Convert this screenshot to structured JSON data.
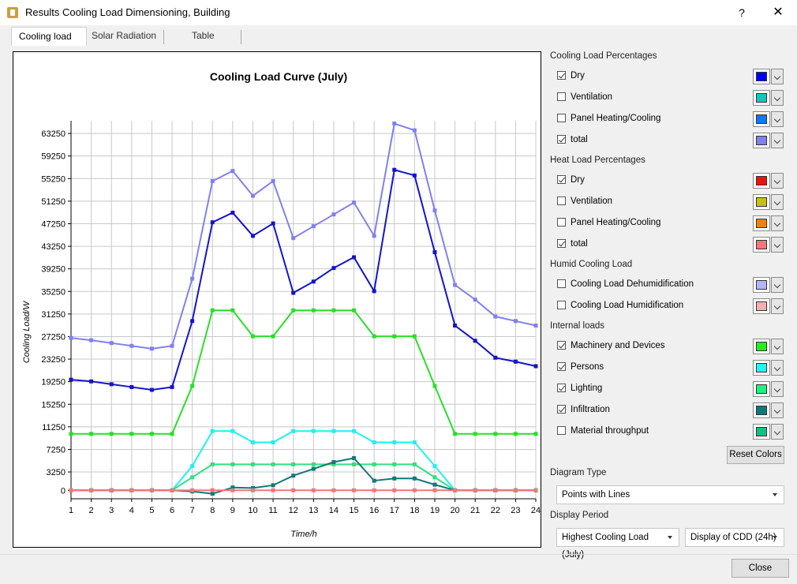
{
  "window": {
    "title": "Results Cooling Load Dimensioning, Building",
    "help": "?",
    "close": "✕"
  },
  "tabs": [
    "Cooling load",
    "Solar Radiation",
    "Table"
  ],
  "chart_data": {
    "type": "line",
    "title": "Cooling Load Curve (July)",
    "xlabel": "Time/h",
    "ylabel": "Cooling Load/W",
    "x": [
      1,
      2,
      3,
      4,
      5,
      6,
      7,
      8,
      9,
      10,
      11,
      12,
      13,
      14,
      15,
      16,
      17,
      18,
      19,
      20,
      21,
      22,
      23,
      24
    ],
    "xlim": [
      1,
      24
    ],
    "ylim": [
      -1500,
      65500
    ],
    "yticks": [
      0,
      3250,
      7250,
      11250,
      15250,
      19250,
      23250,
      27250,
      31250,
      35250,
      39250,
      43250,
      47250,
      51250,
      55250,
      59250,
      63250
    ],
    "grid": true,
    "series": [
      {
        "color": "#8080f0",
        "values": [
          27000,
          26600,
          26100,
          25600,
          25100,
          25600,
          37500,
          54800,
          56600,
          52200,
          54800,
          44700,
          46800,
          48900,
          51000,
          45100,
          65000,
          63800,
          49600,
          36400,
          33800,
          30800,
          30000,
          29200
        ]
      },
      {
        "color": "#1414c8",
        "values": [
          19600,
          19300,
          18800,
          18300,
          17800,
          18300,
          30000,
          47500,
          49200,
          45100,
          47300,
          35000,
          37000,
          39400,
          41300,
          35300,
          56800,
          55800,
          42200,
          29200,
          26500,
          23500,
          22800,
          22000
        ]
      },
      {
        "color": "#28e028",
        "values": [
          10000,
          10000,
          10000,
          10000,
          10000,
          10000,
          18500,
          31900,
          31900,
          27300,
          27300,
          31900,
          31900,
          31900,
          31900,
          27300,
          27300,
          27300,
          18500,
          10000,
          10000,
          10000,
          10000,
          10000
        ]
      },
      {
        "color": "#20f0f0",
        "values": [
          0,
          0,
          0,
          0,
          0,
          0,
          4300,
          10500,
          10500,
          8500,
          8500,
          10500,
          10500,
          10500,
          10500,
          8500,
          8500,
          8500,
          4300,
          0,
          0,
          0,
          0,
          0
        ]
      },
      {
        "color": "#30e080",
        "values": [
          0,
          0,
          0,
          0,
          0,
          0,
          2300,
          4600,
          4600,
          4600,
          4600,
          4600,
          4600,
          4600,
          4600,
          4600,
          4600,
          4600,
          2300,
          0,
          0,
          0,
          0,
          0
        ]
      },
      {
        "color": "#147878",
        "values": [
          0,
          0,
          0,
          0,
          0,
          0,
          -200,
          -600,
          500,
          400,
          900,
          2600,
          3800,
          5000,
          5700,
          1700,
          2100,
          2100,
          1000,
          0,
          0,
          0,
          0,
          0
        ]
      },
      {
        "color": "#f07878",
        "values": [
          0,
          0,
          0,
          0,
          0,
          0,
          0,
          0,
          0,
          0,
          0,
          0,
          0,
          0,
          0,
          0,
          0,
          0,
          0,
          0,
          0,
          0,
          0,
          0
        ]
      }
    ]
  },
  "sections": {
    "cooling": "Cooling Load Percentages",
    "heat": "Heat Load Percentages",
    "humid": "Humid Cooling Load",
    "internal": "Internal loads"
  },
  "items": [
    {
      "label": "Dry",
      "checked": true,
      "color": "#0000f0"
    },
    {
      "label": "Ventilation",
      "checked": false,
      "color": "#10c8c0"
    },
    {
      "label": "Panel Heating/Cooling",
      "checked": false,
      "color": "#1078f0"
    },
    {
      "label": "total",
      "checked": true,
      "color": "#8080f0"
    },
    {
      "label": "Dry",
      "checked": true,
      "color": "#f01010"
    },
    {
      "label": "Ventilation",
      "checked": false,
      "color": "#c8c010"
    },
    {
      "label": "Panel Heating/Cooling",
      "checked": false,
      "color": "#f08010"
    },
    {
      "label": "total",
      "checked": true,
      "color": "#f07878"
    },
    {
      "label": "Cooling Load Dehumidification",
      "checked": false,
      "color": "#b4b4f8"
    },
    {
      "label": "Cooling Load Humidification",
      "checked": false,
      "color": "#f8b0b0"
    },
    {
      "label": "Machinery and Devices",
      "checked": true,
      "color": "#20f020"
    },
    {
      "label": "Persons",
      "checked": true,
      "color": "#20f8f8"
    },
    {
      "label": "Lighting",
      "checked": true,
      "color": "#20f080"
    },
    {
      "label": "Infiltration",
      "checked": true,
      "color": "#107878"
    },
    {
      "label": "Material throughput",
      "checked": false,
      "color": "#10c080"
    }
  ],
  "reset": "Reset Colors",
  "diagram_type": {
    "label": "Diagram Type",
    "value": "Points with Lines"
  },
  "display_period": {
    "label": "Display Period",
    "value1": "Highest Cooling Load (July)",
    "value2": "Display of CDD (24h)"
  },
  "close_label": "Close"
}
